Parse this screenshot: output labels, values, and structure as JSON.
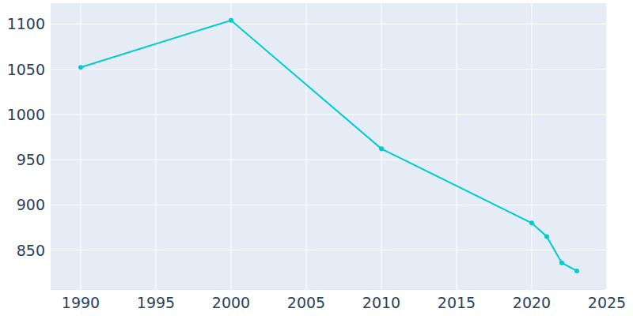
{
  "chart_data": {
    "type": "line",
    "x": [
      1990,
      2000,
      2010,
      2020,
      2021,
      2022,
      2023
    ],
    "values": [
      1052,
      1104,
      962,
      880,
      865,
      836,
      827
    ],
    "color": "#00cccc",
    "marker": "circle",
    "xlim": [
      1988,
      2025
    ],
    "ylim": [
      806,
      1123
    ],
    "xticks": [
      1990,
      1995,
      2000,
      2005,
      2010,
      2015,
      2020,
      2025
    ],
    "yticks": [
      850,
      900,
      950,
      1000,
      1050,
      1100
    ],
    "grid": true
  }
}
